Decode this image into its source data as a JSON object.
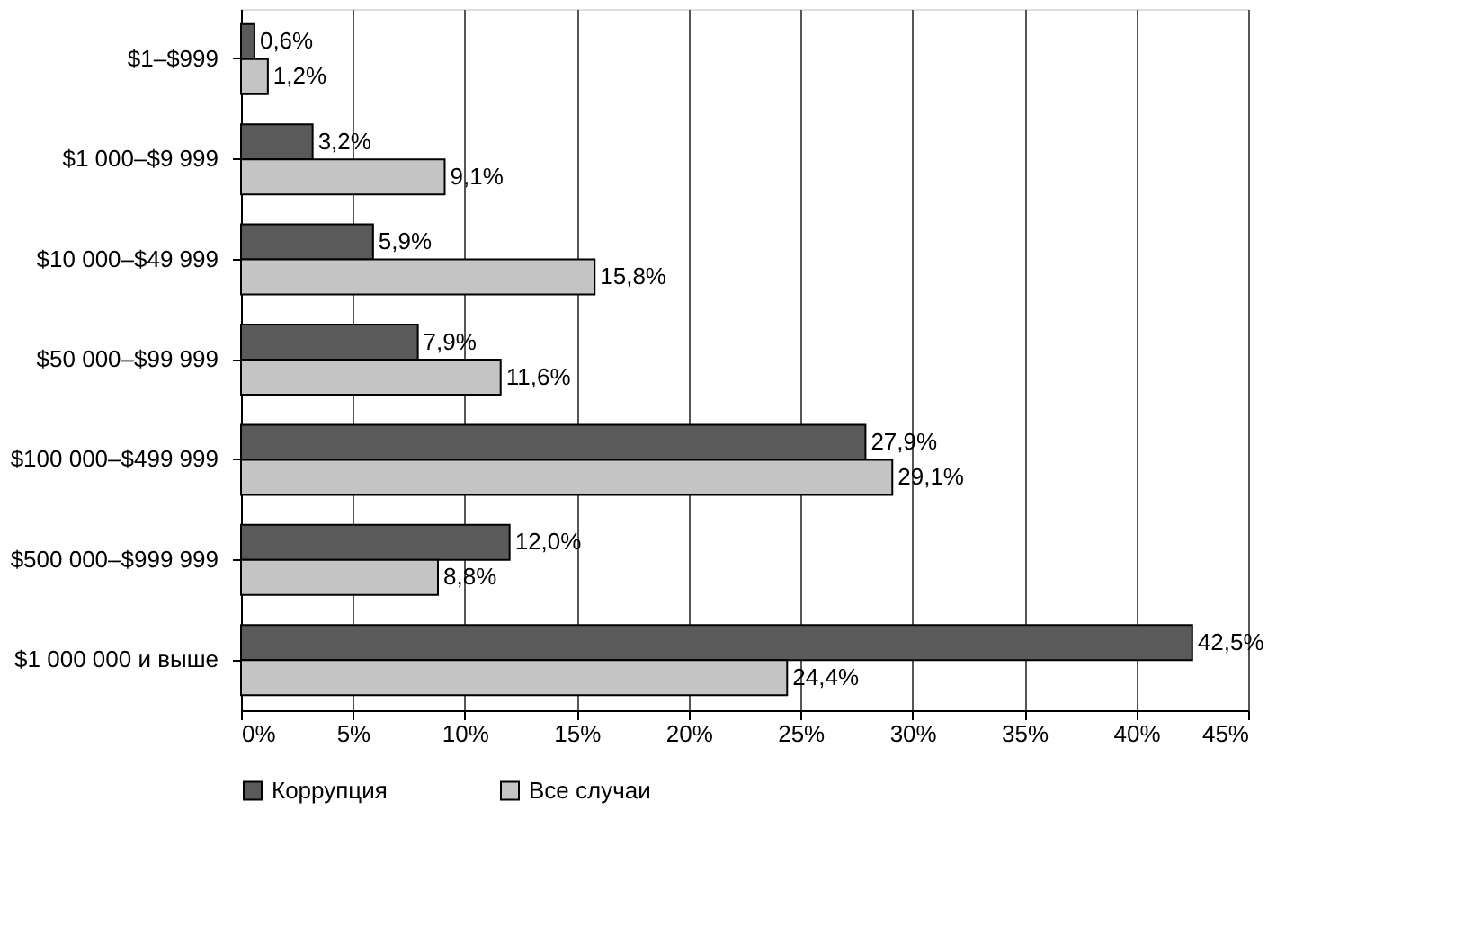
{
  "chart_data": {
    "type": "bar",
    "orientation": "horizontal",
    "categories": [
      "$1–$999",
      "$1 000–$9 999",
      "$10 000–$49 999",
      "$50 000–$99 999",
      "$100 000–$499 999",
      "$500 000–$999 999",
      "$1 000 000 и выше"
    ],
    "series": [
      {
        "name": "Коррупция",
        "color": "#5a5a5a",
        "values": [
          0.6,
          3.2,
          5.9,
          7.9,
          27.9,
          12.0,
          42.5
        ],
        "value_labels": [
          "0,6%",
          "3,2%",
          "5,9%",
          "7,9%",
          "27,9%",
          "12,0%",
          "42,5%"
        ]
      },
      {
        "name": "Все случаи",
        "color": "#c4c4c4",
        "values": [
          1.2,
          9.1,
          15.8,
          11.6,
          29.1,
          8.8,
          24.4
        ],
        "value_labels": [
          "1,2%",
          "9,1%",
          "15,8%",
          "11,6%",
          "29,1%",
          "8,8%",
          "24,4%"
        ]
      }
    ],
    "xlim": [
      0,
      45
    ],
    "xticks": [
      {
        "value": 0,
        "label": "0%"
      },
      {
        "value": 5,
        "label": "5%"
      },
      {
        "value": 10,
        "label": "10%"
      },
      {
        "value": 15,
        "label": "15%"
      },
      {
        "value": 20,
        "label": "20%"
      },
      {
        "value": 25,
        "label": "25%"
      },
      {
        "value": 30,
        "label": "30%"
      },
      {
        "value": 35,
        "label": "35%"
      },
      {
        "value": 40,
        "label": "40%"
      },
      {
        "value": 45,
        "label": "45%"
      }
    ],
    "grid": "x",
    "legend": "bottom"
  }
}
